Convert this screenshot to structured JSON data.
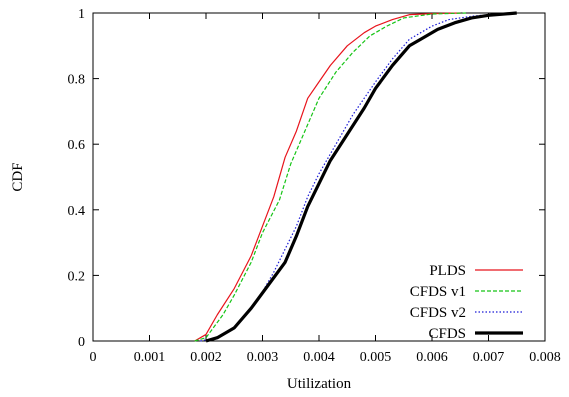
{
  "chart_data": {
    "type": "line",
    "xlabel": "Utilization",
    "ylabel": "CDF",
    "xlim": [
      0,
      0.008
    ],
    "ylim": [
      0,
      1
    ],
    "x_ticks": [
      "0",
      "0.001",
      "0.002",
      "0.003",
      "0.004",
      "0.005",
      "0.006",
      "0.007",
      "0.008"
    ],
    "y_ticks": [
      "0",
      "0.2",
      "0.4",
      "0.6",
      "0.8",
      "1"
    ],
    "grid": false,
    "legend_position": "bottom-right",
    "series": [
      {
        "name": "PLDS",
        "color": "#e8141c",
        "dash": "solid",
        "points": [
          [
            0.0018,
            0.0
          ],
          [
            0.002,
            0.02
          ],
          [
            0.0022,
            0.08
          ],
          [
            0.0025,
            0.16
          ],
          [
            0.0028,
            0.26
          ],
          [
            0.003,
            0.35
          ],
          [
            0.0032,
            0.44
          ],
          [
            0.0034,
            0.56
          ],
          [
            0.0036,
            0.64
          ],
          [
            0.0038,
            0.74
          ],
          [
            0.004,
            0.79
          ],
          [
            0.0042,
            0.84
          ],
          [
            0.0045,
            0.9
          ],
          [
            0.0048,
            0.94
          ],
          [
            0.005,
            0.96
          ],
          [
            0.0053,
            0.98
          ],
          [
            0.0056,
            0.995
          ],
          [
            0.006,
            0.998
          ],
          [
            0.0065,
            1.0
          ]
        ]
      },
      {
        "name": "CFDS v1",
        "color": "#16c416",
        "dash": "dashed",
        "points": [
          [
            0.0018,
            0.0
          ],
          [
            0.002,
            0.01
          ],
          [
            0.0023,
            0.08
          ],
          [
            0.0025,
            0.14
          ],
          [
            0.0028,
            0.24
          ],
          [
            0.003,
            0.33
          ],
          [
            0.0033,
            0.43
          ],
          [
            0.0035,
            0.54
          ],
          [
            0.0038,
            0.66
          ],
          [
            0.004,
            0.74
          ],
          [
            0.0043,
            0.82
          ],
          [
            0.0046,
            0.88
          ],
          [
            0.0049,
            0.93
          ],
          [
            0.0052,
            0.96
          ],
          [
            0.0055,
            0.985
          ],
          [
            0.006,
            0.997
          ],
          [
            0.0066,
            1.0
          ]
        ]
      },
      {
        "name": "CFDS v2",
        "color": "#1a1ad6",
        "dash": "dotted",
        "points": [
          [
            0.0019,
            0.0
          ],
          [
            0.0022,
            0.01
          ],
          [
            0.0025,
            0.04
          ],
          [
            0.0028,
            0.1
          ],
          [
            0.003,
            0.15
          ],
          [
            0.0032,
            0.21
          ],
          [
            0.0034,
            0.28
          ],
          [
            0.0036,
            0.35
          ],
          [
            0.0038,
            0.44
          ],
          [
            0.004,
            0.51
          ],
          [
            0.0043,
            0.6
          ],
          [
            0.0046,
            0.69
          ],
          [
            0.005,
            0.79
          ],
          [
            0.0053,
            0.86
          ],
          [
            0.0056,
            0.92
          ],
          [
            0.0058,
            0.94
          ],
          [
            0.006,
            0.96
          ],
          [
            0.0063,
            0.98
          ],
          [
            0.0067,
            0.99
          ],
          [
            0.007,
            0.995
          ],
          [
            0.0075,
            1.0
          ]
        ]
      },
      {
        "name": "CFDS",
        "color": "#000000",
        "dash": "solid",
        "points": [
          [
            0.002,
            0.0
          ],
          [
            0.0022,
            0.01
          ],
          [
            0.0025,
            0.04
          ],
          [
            0.0028,
            0.1
          ],
          [
            0.0031,
            0.17
          ],
          [
            0.0034,
            0.24
          ],
          [
            0.0036,
            0.32
          ],
          [
            0.0038,
            0.41
          ],
          [
            0.004,
            0.48
          ],
          [
            0.0042,
            0.55
          ],
          [
            0.0045,
            0.63
          ],
          [
            0.0048,
            0.71
          ],
          [
            0.005,
            0.77
          ],
          [
            0.0053,
            0.84
          ],
          [
            0.0056,
            0.9
          ],
          [
            0.0058,
            0.92
          ],
          [
            0.0061,
            0.95
          ],
          [
            0.0064,
            0.97
          ],
          [
            0.0067,
            0.985
          ],
          [
            0.007,
            0.993
          ],
          [
            0.0075,
            1.0
          ]
        ]
      }
    ]
  }
}
